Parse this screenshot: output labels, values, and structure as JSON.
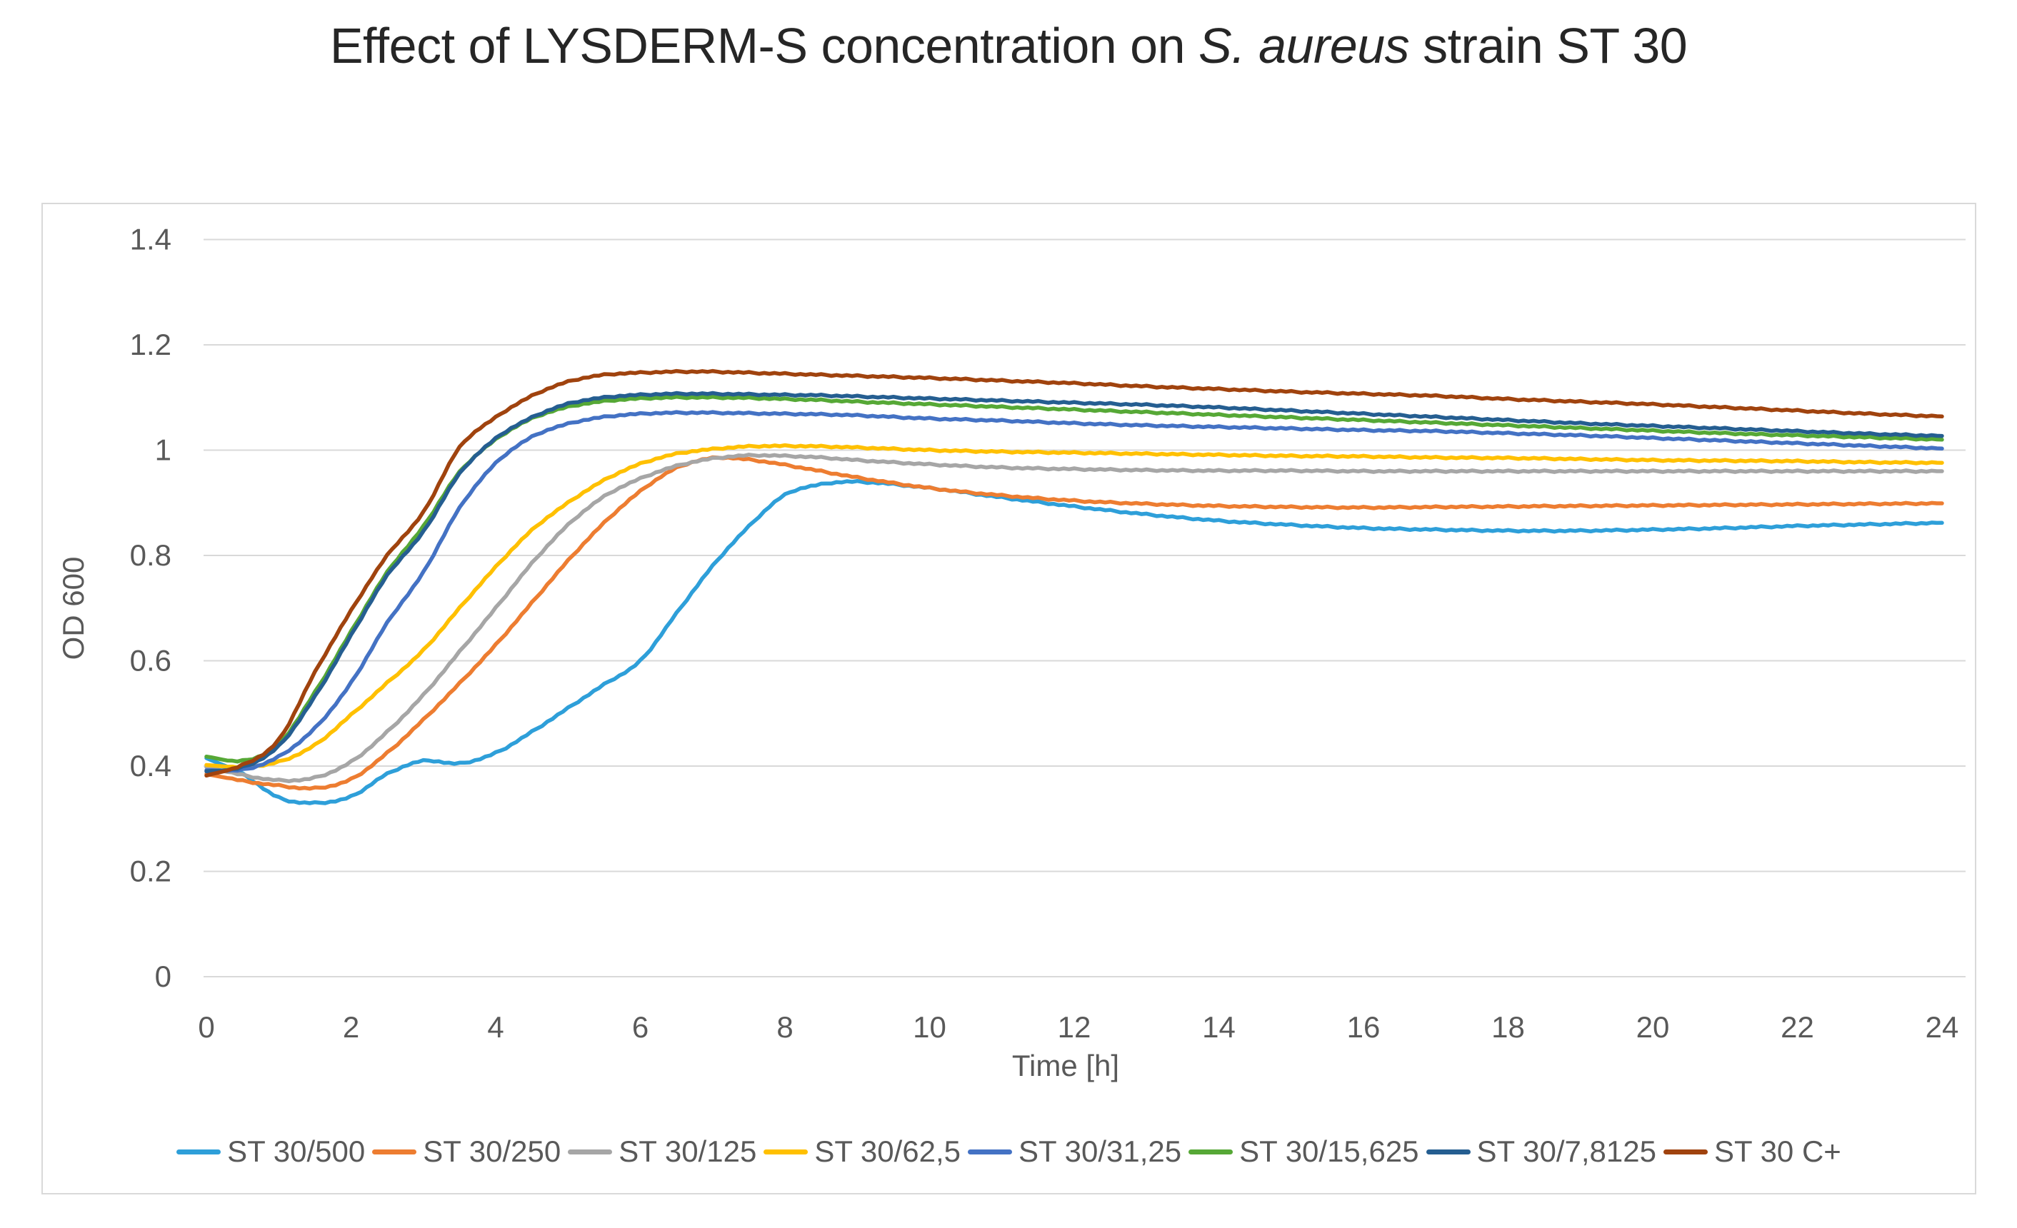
{
  "title": {
    "part1": "Effect of LYSDERM-S concentration on ",
    "italic": "S. aureus",
    "part2": " strain ST 30"
  },
  "colors": {
    "grid": "#D9D9D9",
    "border": "#D9D9D9",
    "axis_text": "#595959",
    "title_text": "#262626",
    "background": "#FFFFFF"
  },
  "chart_data": {
    "type": "line",
    "title": "Effect of LYSDERM-S concentration on S. aureus strain ST 30",
    "xlabel": "Time [h]",
    "ylabel": "OD 600",
    "xlim": [
      0,
      24
    ],
    "ylim": [
      0,
      1.4
    ],
    "xticks": [
      0,
      2,
      4,
      6,
      8,
      10,
      12,
      14,
      16,
      18,
      20,
      22,
      24
    ],
    "ytick_labels": [
      "0",
      "0.2",
      "0.4",
      "0.6",
      "0.8",
      "1",
      "1.2",
      "1.4"
    ],
    "grid": true,
    "legend_position": "bottom",
    "x": [
      0,
      0.5,
      1,
      1.5,
      2,
      2.5,
      3,
      3.5,
      4,
      4.5,
      5,
      5.5,
      6,
      6.5,
      7,
      7.5,
      8,
      8.5,
      9,
      10,
      11,
      12,
      13,
      14,
      15,
      16,
      17,
      18,
      19,
      20,
      21,
      22,
      23,
      24
    ],
    "series": [
      {
        "name": "ST 30/500",
        "color": "#2E9FD9",
        "values": [
          0.415,
          0.385,
          0.34,
          0.33,
          0.342,
          0.385,
          0.41,
          0.405,
          0.425,
          0.465,
          0.51,
          0.555,
          0.6,
          0.69,
          0.78,
          0.855,
          0.915,
          0.935,
          0.94,
          0.928,
          0.91,
          0.893,
          0.878,
          0.866,
          0.858,
          0.852,
          0.849,
          0.847,
          0.847,
          0.849,
          0.852,
          0.856,
          0.859,
          0.862
        ]
      },
      {
        "name": "ST 30/250",
        "color": "#ED7D31",
        "values": [
          0.385,
          0.372,
          0.363,
          0.358,
          0.375,
          0.425,
          0.488,
          0.557,
          0.63,
          0.71,
          0.79,
          0.862,
          0.922,
          0.966,
          0.985,
          0.982,
          0.972,
          0.96,
          0.948,
          0.928,
          0.914,
          0.904,
          0.898,
          0.894,
          0.892,
          0.891,
          0.892,
          0.893,
          0.894,
          0.895,
          0.896,
          0.897,
          0.898,
          0.899
        ]
      },
      {
        "name": "ST 30/125",
        "color": "#A6A6A6",
        "values": [
          0.398,
          0.383,
          0.373,
          0.378,
          0.408,
          0.465,
          0.535,
          0.617,
          0.7,
          0.785,
          0.858,
          0.912,
          0.946,
          0.97,
          0.984,
          0.99,
          0.989,
          0.986,
          0.981,
          0.973,
          0.967,
          0.964,
          0.962,
          0.961,
          0.961,
          0.96,
          0.96,
          0.96,
          0.96,
          0.96,
          0.96,
          0.96,
          0.96,
          0.96
        ]
      },
      {
        "name": "ST 30/62,5",
        "color": "#FFC000",
        "values": [
          0.402,
          0.398,
          0.408,
          0.44,
          0.497,
          0.558,
          0.62,
          0.7,
          0.778,
          0.848,
          0.9,
          0.943,
          0.974,
          0.993,
          1.002,
          1.007,
          1.008,
          1.007,
          1.005,
          1.0,
          0.997,
          0.995,
          0.993,
          0.991,
          0.989,
          0.988,
          0.986,
          0.985,
          0.983,
          0.981,
          0.98,
          0.979,
          0.977,
          0.976
        ]
      },
      {
        "name": "ST 30/31,25",
        "color": "#4472C4",
        "values": [
          0.392,
          0.393,
          0.418,
          0.472,
          0.558,
          0.672,
          0.768,
          0.89,
          0.975,
          1.025,
          1.05,
          1.063,
          1.069,
          1.071,
          1.071,
          1.07,
          1.069,
          1.068,
          1.066,
          1.06,
          1.056,
          1.051,
          1.047,
          1.044,
          1.041,
          1.038,
          1.036,
          1.032,
          1.028,
          1.023,
          1.018,
          1.013,
          1.008,
          1.003
        ]
      },
      {
        "name": "ST 30/15,625",
        "color": "#56A836",
        "values": [
          0.418,
          0.41,
          0.442,
          0.54,
          0.655,
          0.768,
          0.855,
          0.958,
          1.02,
          1.06,
          1.082,
          1.093,
          1.098,
          1.1,
          1.1,
          1.099,
          1.097,
          1.095,
          1.092,
          1.087,
          1.082,
          1.077,
          1.072,
          1.067,
          1.062,
          1.057,
          1.052,
          1.047,
          1.042,
          1.037,
          1.032,
          1.028,
          1.024,
          1.02
        ]
      },
      {
        "name": "ST 30/7,8125",
        "color": "#255E91",
        "values": [
          0.39,
          0.398,
          0.438,
          0.532,
          0.648,
          0.762,
          0.845,
          0.955,
          1.022,
          1.062,
          1.088,
          1.1,
          1.105,
          1.107,
          1.107,
          1.106,
          1.105,
          1.104,
          1.102,
          1.098,
          1.094,
          1.09,
          1.086,
          1.081,
          1.075,
          1.069,
          1.063,
          1.057,
          1.051,
          1.046,
          1.041,
          1.036,
          1.031,
          1.027
        ]
      },
      {
        "name": "ST 30 C+",
        "color": "#A0430E",
        "values": [
          0.382,
          0.402,
          0.45,
          0.578,
          0.695,
          0.8,
          0.882,
          1.005,
          1.062,
          1.103,
          1.13,
          1.143,
          1.147,
          1.149,
          1.149,
          1.147,
          1.145,
          1.143,
          1.141,
          1.137,
          1.132,
          1.127,
          1.121,
          1.116,
          1.111,
          1.107,
          1.103,
          1.097,
          1.092,
          1.087,
          1.081,
          1.075,
          1.069,
          1.064
        ]
      }
    ]
  }
}
